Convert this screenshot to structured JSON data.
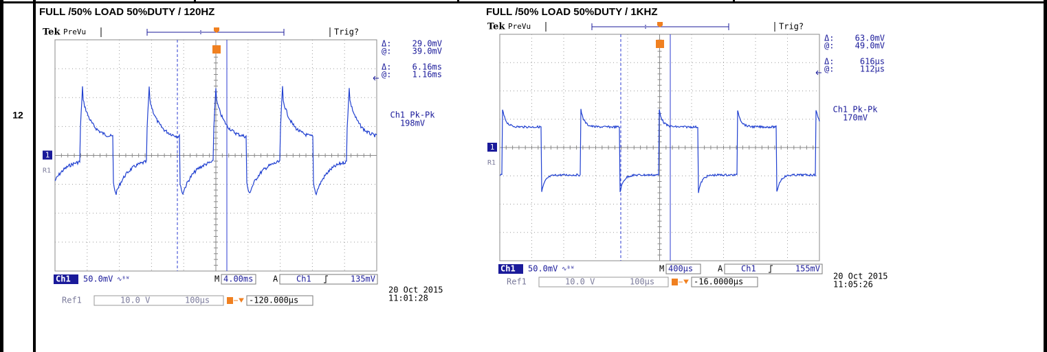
{
  "row_number": "12",
  "captures": [
    {
      "title": "FULL /50% LOAD 50%DUTY / 120HZ",
      "brand": "Tek",
      "mode": "PreVu",
      "trig": "Trig?",
      "delta_symbol": "Δ:",
      "at_symbol": "@:",
      "delta_v": "29.0mV",
      "at_v": "39.0mV",
      "delta_t": "6.16ms",
      "at_t": "1.16ms",
      "measurement_label": "Ch1 Pk-Pk",
      "measurement_value": "198mV",
      "channel": "Ch1",
      "channel_scale": "50.0mV",
      "m_label": "M",
      "timebase": "4.00ms",
      "a_label": "A",
      "trigger_source": "Ch1",
      "trigger_level": "135mV",
      "ref": "Ref1",
      "ref_scale": "10.0 V",
      "ref_time": "100µs",
      "position": "-120.000µs",
      "date": "20 Oct  2015",
      "time": "11:01:28",
      "ch_marker": "1",
      "ref_marker": "R1"
    },
    {
      "title": "FULL /50% LOAD 50%DUTY / 1KHZ",
      "brand": "Tek",
      "mode": "PreVu",
      "trig": "Trig?",
      "delta_symbol": "Δ:",
      "at_symbol": "@:",
      "delta_v": "63.0mV",
      "at_v": "49.0mV",
      "delta_t": "616µs",
      "at_t": "112µs",
      "measurement_label": "Ch1 Pk-Pk",
      "measurement_value": "170mV",
      "channel": "Ch1",
      "channel_scale": "50.0mV",
      "m_label": "M",
      "timebase": "400µs",
      "a_label": "A",
      "trigger_source": "Ch1",
      "trigger_level": "155mV",
      "ref": "Ref1",
      "ref_scale": "10.0 V",
      "ref_time": "100µs",
      "position": "-16.0000µs",
      "date": "20 Oct  2015",
      "time": "11:05:26",
      "ch_marker": "1",
      "ref_marker": "R1"
    }
  ]
}
